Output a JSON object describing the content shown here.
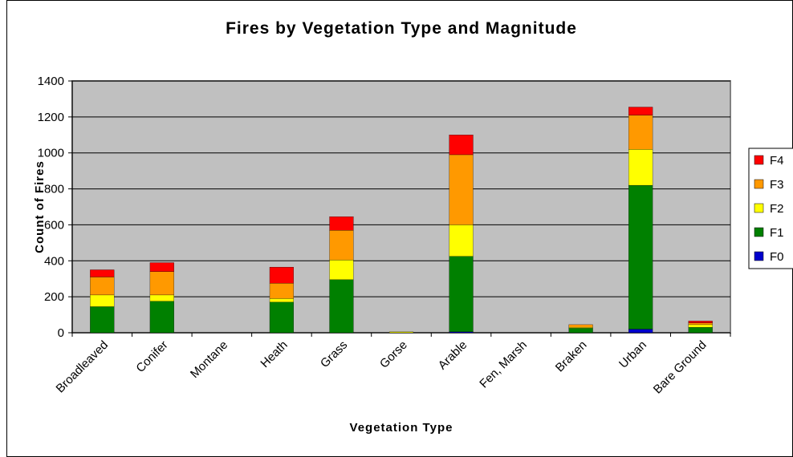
{
  "chart_data": {
    "type": "stacked-bar",
    "title": "Fires by Vegetation Type and Magnitude",
    "x_label": "Vegetation Type",
    "y_label": "Count of Fires",
    "categories": [
      "Broadleaved",
      "Conifer",
      "Montane",
      "Heath",
      "Grass",
      "Gorse",
      "Arable",
      "Fen, Marsh",
      "Braken",
      "Urban",
      "Bare Ground"
    ],
    "series": [
      {
        "name": "F0",
        "color": "#0000cc",
        "values": [
          0,
          0,
          0,
          0,
          0,
          0,
          5,
          0,
          0,
          20,
          0
        ]
      },
      {
        "name": "F1",
        "color": "#008000",
        "values": [
          145,
          175,
          0,
          170,
          295,
          0,
          420,
          0,
          25,
          800,
          30
        ]
      },
      {
        "name": "F2",
        "color": "#ffff00",
        "values": [
          65,
          35,
          0,
          20,
          110,
          5,
          175,
          0,
          5,
          200,
          15
        ]
      },
      {
        "name": "F3",
        "color": "#ff9900",
        "values": [
          100,
          130,
          0,
          85,
          165,
          0,
          390,
          0,
          15,
          190,
          10
        ]
      },
      {
        "name": "F4",
        "color": "#ff0000",
        "values": [
          40,
          50,
          0,
          90,
          75,
          0,
          110,
          0,
          0,
          45,
          10
        ]
      }
    ],
    "ylim": [
      0,
      1400
    ],
    "yticks": [
      0,
      200,
      400,
      600,
      800,
      1000,
      1200,
      1400
    ],
    "grid": true,
    "legend": "right"
  }
}
